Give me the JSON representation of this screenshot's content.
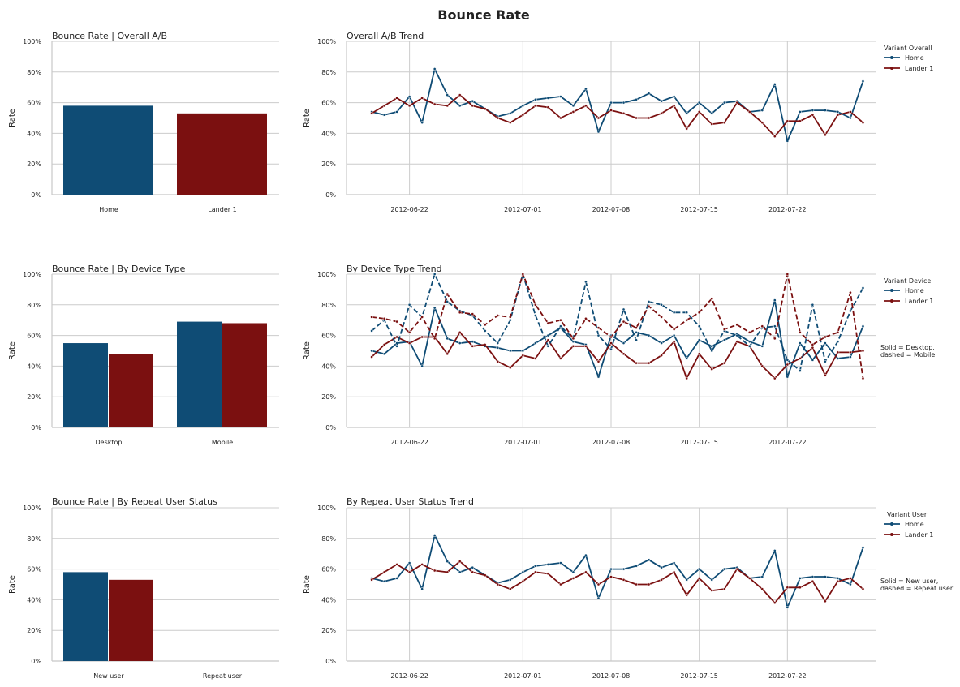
{
  "figure": {
    "title": "Bounce Rate",
    "colors": {
      "home": "#0f4c75",
      "lander": "#7b1010",
      "grid": "#cccccc",
      "axis": "#c8c8c8",
      "text": "#222222"
    },
    "notes": {
      "device": [
        "Solid = Desktop,",
        "dashed = Mobile"
      ],
      "repeat": [
        "Solid = New user,",
        "dashed = Repeat user"
      ]
    },
    "date_ticks": [
      "2012-06-22",
      "2012-07-01",
      "2012-07-08",
      "2012-07-15",
      "2012-07-22"
    ],
    "y_ticks": [
      "0%",
      "20%",
      "40%",
      "60%",
      "80%",
      "100%"
    ],
    "ylabel": "Rate"
  },
  "chart_data": [
    {
      "id": "overall-bar",
      "type": "bar",
      "title": "Bounce Rate | Overall A/B",
      "ylabel": "Rate",
      "ylim": [
        0,
        1
      ],
      "categories": [
        "Home",
        "Lander 1"
      ],
      "series": [
        {
          "name": "",
          "values": [
            0.58,
            0.53
          ]
        }
      ]
    },
    {
      "id": "device-bar",
      "type": "bar",
      "title": "Bounce Rate | By Device Type",
      "ylabel": "Rate",
      "ylim": [
        0,
        1
      ],
      "categories": [
        "Desktop",
        "Mobile"
      ],
      "series": [
        {
          "name": "Home",
          "values": [
            0.55,
            0.69
          ]
        },
        {
          "name": "Lander 1",
          "values": [
            0.48,
            0.68
          ]
        }
      ]
    },
    {
      "id": "repeat-bar",
      "type": "bar",
      "title": "Bounce Rate | By Repeat User Status",
      "ylabel": "Rate",
      "ylim": [
        0,
        1
      ],
      "categories": [
        "New user",
        "Repeat user"
      ],
      "series": [
        {
          "name": "Home",
          "values": [
            0.58,
            null
          ]
        },
        {
          "name": "Lander 1",
          "values": [
            0.53,
            null
          ]
        }
      ]
    },
    {
      "id": "overall-trend",
      "type": "line",
      "title": "Overall A/B Trend",
      "ylabel": "Rate",
      "ylim": [
        0,
        1
      ],
      "x": [
        "2012-06-19",
        "2012-06-20",
        "2012-06-21",
        "2012-06-22",
        "2012-06-23",
        "2012-06-24",
        "2012-06-25",
        "2012-06-26",
        "2012-06-27",
        "2012-06-28",
        "2012-06-29",
        "2012-06-30",
        "2012-07-01",
        "2012-07-02",
        "2012-07-03",
        "2012-07-04",
        "2012-07-05",
        "2012-07-06",
        "2012-07-07",
        "2012-07-08",
        "2012-07-09",
        "2012-07-10",
        "2012-07-11",
        "2012-07-12",
        "2012-07-13",
        "2012-07-14",
        "2012-07-15",
        "2012-07-16",
        "2012-07-17",
        "2012-07-18",
        "2012-07-19",
        "2012-07-20",
        "2012-07-21",
        "2012-07-22",
        "2012-07-23",
        "2012-07-24",
        "2012-07-25",
        "2012-07-26",
        "2012-07-27",
        "2012-07-28"
      ],
      "legend": {
        "title": "Variant Overall",
        "placement": "right"
      },
      "series": [
        {
          "name": "Home",
          "dash": "solid",
          "values": [
            0.54,
            0.52,
            0.54,
            0.64,
            0.47,
            0.82,
            0.65,
            0.58,
            0.61,
            0.56,
            0.51,
            0.53,
            0.58,
            0.62,
            0.63,
            0.64,
            0.58,
            0.69,
            0.41,
            0.6,
            0.6,
            0.62,
            0.66,
            0.61,
            0.64,
            0.53,
            0.6,
            0.53,
            0.6,
            0.61,
            0.54,
            0.55,
            0.72,
            0.35,
            0.54,
            0.55,
            0.55,
            0.54,
            0.5,
            0.74
          ]
        },
        {
          "name": "Lander 1",
          "dash": "solid",
          "values": [
            0.53,
            0.58,
            0.63,
            0.58,
            0.63,
            0.59,
            0.58,
            0.65,
            0.58,
            0.56,
            0.5,
            0.47,
            0.52,
            0.58,
            0.57,
            0.5,
            0.54,
            0.58,
            0.5,
            0.55,
            0.53,
            0.5,
            0.5,
            0.53,
            0.58,
            0.43,
            0.54,
            0.46,
            0.47,
            0.6,
            0.54,
            0.47,
            0.38,
            0.48,
            0.48,
            0.52,
            0.39,
            0.52,
            0.54,
            0.47
          ]
        }
      ]
    },
    {
      "id": "device-trend",
      "type": "line",
      "title": "By Device Type Trend",
      "ylabel": "Rate",
      "ylim": [
        0,
        1
      ],
      "x": [
        "2012-06-19",
        "2012-06-20",
        "2012-06-21",
        "2012-06-22",
        "2012-06-23",
        "2012-06-24",
        "2012-06-25",
        "2012-06-26",
        "2012-06-27",
        "2012-06-28",
        "2012-06-29",
        "2012-06-30",
        "2012-07-01",
        "2012-07-02",
        "2012-07-03",
        "2012-07-04",
        "2012-07-05",
        "2012-07-06",
        "2012-07-07",
        "2012-07-08",
        "2012-07-09",
        "2012-07-10",
        "2012-07-11",
        "2012-07-12",
        "2012-07-13",
        "2012-07-14",
        "2012-07-15",
        "2012-07-16",
        "2012-07-17",
        "2012-07-18",
        "2012-07-19",
        "2012-07-20",
        "2012-07-21",
        "2012-07-22",
        "2012-07-23",
        "2012-07-24",
        "2012-07-25",
        "2012-07-26",
        "2012-07-27",
        "2012-07-28"
      ],
      "legend": {
        "title": "Variant Device",
        "placement": "right"
      },
      "series": [
        {
          "name": "Home",
          "dash": "solid",
          "values": [
            0.5,
            0.48,
            0.55,
            0.56,
            0.4,
            0.78,
            0.58,
            0.55,
            0.56,
            0.53,
            0.52,
            0.5,
            0.5,
            0.55,
            0.6,
            0.65,
            0.56,
            0.54,
            0.33,
            0.6,
            0.55,
            0.62,
            0.6,
            0.55,
            0.6,
            0.45,
            0.57,
            0.53,
            0.57,
            0.61,
            0.56,
            0.53,
            0.83,
            0.33,
            0.55,
            0.44,
            0.55,
            0.45,
            0.46,
            0.66
          ]
        },
        {
          "name": "Lander 1",
          "dash": "solid",
          "values": [
            0.46,
            0.54,
            0.59,
            0.55,
            0.59,
            0.59,
            0.48,
            0.62,
            0.53,
            0.54,
            0.43,
            0.39,
            0.47,
            0.45,
            0.57,
            0.45,
            0.53,
            0.53,
            0.43,
            0.55,
            0.48,
            0.42,
            0.42,
            0.47,
            0.56,
            0.32,
            0.48,
            0.38,
            0.42,
            0.56,
            0.53,
            0.4,
            0.32,
            0.41,
            0.45,
            0.52,
            0.34,
            0.49,
            0.49,
            0.5
          ]
        },
        {
          "name": "Home",
          "dash": "dashed",
          "values": [
            0.63,
            0.7,
            0.53,
            0.8,
            0.72,
            1.0,
            0.82,
            0.76,
            0.73,
            0.63,
            0.55,
            0.7,
            1.0,
            0.73,
            0.53,
            0.66,
            0.58,
            0.95,
            0.6,
            0.51,
            0.77,
            0.57,
            0.82,
            0.8,
            0.75,
            0.75,
            0.66,
            0.5,
            0.63,
            0.6,
            0.53,
            0.65,
            0.66,
            0.44,
            0.37,
            0.8,
            0.43,
            0.56,
            0.76,
            0.91
          ]
        },
        {
          "name": "Lander 1",
          "dash": "dashed",
          "values": [
            0.72,
            0.71,
            0.69,
            0.62,
            0.72,
            0.58,
            0.87,
            0.75,
            0.74,
            0.67,
            0.73,
            0.72,
            1.0,
            0.8,
            0.68,
            0.7,
            0.58,
            0.71,
            0.65,
            0.59,
            0.69,
            0.65,
            0.79,
            0.72,
            0.64,
            0.7,
            0.75,
            0.84,
            0.64,
            0.67,
            0.62,
            0.66,
            0.58,
            1.0,
            0.62,
            0.54,
            0.59,
            0.62,
            0.88,
            0.32
          ]
        }
      ]
    },
    {
      "id": "repeat-trend",
      "type": "line",
      "title": "By Repeat User Status Trend",
      "ylabel": "Rate",
      "ylim": [
        0,
        1
      ],
      "x": [
        "2012-06-19",
        "2012-06-20",
        "2012-06-21",
        "2012-06-22",
        "2012-06-23",
        "2012-06-24",
        "2012-06-25",
        "2012-06-26",
        "2012-06-27",
        "2012-06-28",
        "2012-06-29",
        "2012-06-30",
        "2012-07-01",
        "2012-07-02",
        "2012-07-03",
        "2012-07-04",
        "2012-07-05",
        "2012-07-06",
        "2012-07-07",
        "2012-07-08",
        "2012-07-09",
        "2012-07-10",
        "2012-07-11",
        "2012-07-12",
        "2012-07-13",
        "2012-07-14",
        "2012-07-15",
        "2012-07-16",
        "2012-07-17",
        "2012-07-18",
        "2012-07-19",
        "2012-07-20",
        "2012-07-21",
        "2012-07-22",
        "2012-07-23",
        "2012-07-24",
        "2012-07-25",
        "2012-07-26",
        "2012-07-27",
        "2012-07-28"
      ],
      "legend": {
        "title": "Variant User",
        "placement": "right"
      },
      "series": [
        {
          "name": "Home",
          "dash": "solid",
          "values": [
            0.54,
            0.52,
            0.54,
            0.64,
            0.47,
            0.82,
            0.65,
            0.58,
            0.61,
            0.56,
            0.51,
            0.53,
            0.58,
            0.62,
            0.63,
            0.64,
            0.58,
            0.69,
            0.41,
            0.6,
            0.6,
            0.62,
            0.66,
            0.61,
            0.64,
            0.53,
            0.6,
            0.53,
            0.6,
            0.61,
            0.54,
            0.55,
            0.72,
            0.35,
            0.54,
            0.55,
            0.55,
            0.54,
            0.5,
            0.74
          ]
        },
        {
          "name": "Lander 1",
          "dash": "solid",
          "values": [
            0.53,
            0.58,
            0.63,
            0.58,
            0.63,
            0.59,
            0.58,
            0.65,
            0.58,
            0.56,
            0.5,
            0.47,
            0.52,
            0.58,
            0.57,
            0.5,
            0.54,
            0.58,
            0.5,
            0.55,
            0.53,
            0.5,
            0.5,
            0.53,
            0.58,
            0.43,
            0.54,
            0.46,
            0.47,
            0.6,
            0.54,
            0.47,
            0.38,
            0.48,
            0.48,
            0.52,
            0.39,
            0.52,
            0.54,
            0.47
          ]
        }
      ]
    }
  ]
}
